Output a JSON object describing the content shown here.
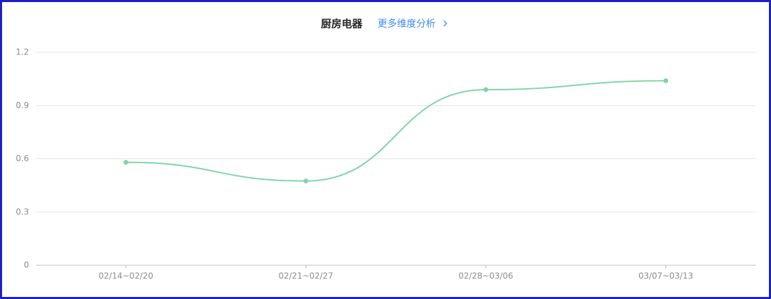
{
  "chart_data": {
    "type": "line",
    "title": "厨房电器",
    "link": "更多维度分析",
    "categories": [
      "02/14~02/20",
      "02/21~02/27",
      "02/28~03/06",
      "03/07~03/13"
    ],
    "values": [
      0.58,
      0.475,
      0.99,
      1.04
    ],
    "color": "#7fd5a9",
    "ylim": [
      0,
      1.2
    ],
    "yticks": [
      0,
      0.3,
      0.6,
      0.9,
      1.2
    ],
    "grid": true
  }
}
